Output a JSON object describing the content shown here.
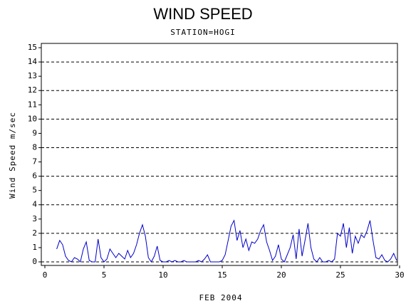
{
  "chart_data": {
    "type": "line",
    "title": "WIND SPEED",
    "subtitle": "STATION=HOGI",
    "xlabel": "FEB 2004",
    "ylabel": "Wind Speed m/sec",
    "x": [
      1,
      1.25,
      1.5,
      1.75,
      2,
      2.25,
      2.5,
      2.75,
      3,
      3.25,
      3.5,
      3.75,
      4,
      4.25,
      4.5,
      4.75,
      5,
      5.25,
      5.5,
      5.75,
      6,
      6.25,
      6.5,
      6.75,
      7,
      7.25,
      7.5,
      7.75,
      8,
      8.25,
      8.5,
      8.75,
      9,
      9.25,
      9.5,
      9.75,
      10,
      10.25,
      10.5,
      10.75,
      11,
      11.25,
      11.5,
      11.75,
      12,
      12.25,
      12.5,
      12.75,
      13,
      13.25,
      13.5,
      13.75,
      14,
      14.25,
      14.5,
      14.75,
      15,
      15.25,
      15.5,
      15.75,
      16,
      16.25,
      16.5,
      16.75,
      17,
      17.25,
      17.5,
      17.75,
      18,
      18.25,
      18.5,
      18.75,
      19,
      19.25,
      19.5,
      19.75,
      20,
      20.25,
      20.5,
      20.75,
      21,
      21.25,
      21.5,
      21.75,
      22,
      22.25,
      22.5,
      22.75,
      23,
      23.25,
      23.5,
      23.75,
      24,
      24.25,
      24.5,
      24.75,
      25,
      25.25,
      25.5,
      25.75,
      26,
      26.25,
      26.5,
      26.75,
      27,
      27.25,
      27.5,
      27.75,
      28,
      28.25,
      28.5,
      28.75,
      29,
      29.25,
      29.5,
      29.75
    ],
    "series": [
      {
        "name": "Wind Speed",
        "color": "#0000cc",
        "values": [
          0.9,
          1.5,
          1.2,
          0.4,
          0.1,
          0,
          0.3,
          0.2,
          0,
          0.9,
          1.4,
          0.1,
          0,
          0,
          1.6,
          0.3,
          0,
          0.2,
          0.9,
          0.6,
          0.3,
          0.6,
          0.4,
          0.2,
          0.8,
          0.3,
          0.6,
          1.2,
          2.0,
          2.6,
          1.8,
          0.3,
          0,
          0.4,
          1.1,
          0.1,
          0,
          0,
          0.1,
          0,
          0.1,
          0,
          0,
          0.1,
          0,
          0,
          0,
          0,
          0.1,
          0,
          0.2,
          0.5,
          0,
          0,
          0,
          0,
          0.1,
          0.5,
          1.5,
          2.5,
          2.9,
          1.5,
          2.2,
          1.0,
          1.6,
          0.8,
          1.4,
          1.3,
          1.6,
          2.2,
          2.6,
          1.4,
          0.8,
          0.1,
          0.4,
          1.2,
          0.2,
          0,
          0.5,
          1.0,
          1.9,
          0.2,
          2.3,
          0.4,
          1.5,
          2.7,
          1.0,
          0.2,
          0,
          0.3,
          0,
          0,
          0.1,
          0,
          0.2,
          2.0,
          1.8,
          2.7,
          1.0,
          2.4,
          0.6,
          1.8,
          1.3,
          1.9,
          1.7,
          2.2,
          2.9,
          1.5,
          0.3,
          0.2,
          0.5,
          0.1,
          0,
          0.2,
          0.6,
          0.1
        ]
      }
    ],
    "xlim": [
      0,
      30
    ],
    "xticks": [
      0,
      5,
      10,
      15,
      20,
      25,
      30
    ],
    "ylim": [
      0,
      15.3
    ],
    "yticks": [
      0,
      1,
      2,
      3,
      4,
      5,
      6,
      7,
      8,
      9,
      10,
      11,
      12,
      13,
      14,
      15
    ],
    "gridlines": [
      0,
      2,
      4,
      6,
      8,
      10,
      12,
      14
    ]
  }
}
